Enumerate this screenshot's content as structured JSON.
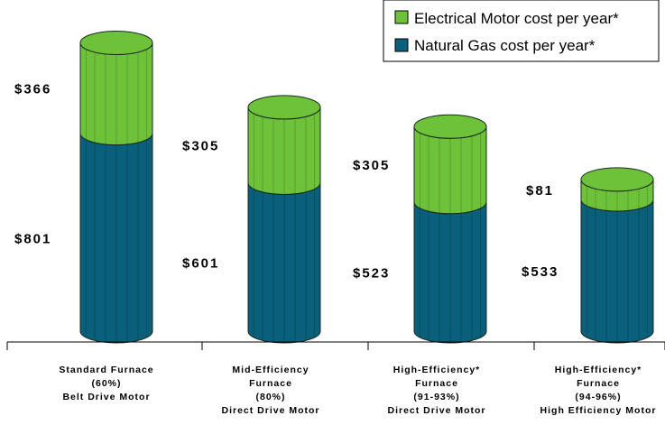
{
  "colors": {
    "electric": "#6EC23A",
    "electric_top": "#5FAE30",
    "gas": "#0A5F7A",
    "gas_top": "#0C6F8B",
    "stroke": "#1a2a20"
  },
  "chart_data": {
    "type": "bar",
    "stacked": true,
    "categories": [
      [
        "Standard Furnace",
        "(60%)",
        "Belt Drive Motor"
      ],
      [
        "Mid-Efficiency",
        "Furnace",
        "(80%)",
        "Direct Drive Motor"
      ],
      [
        "High-Efficiency*",
        "Furnace",
        "(91-93%)",
        "Direct Drive Motor"
      ],
      [
        "High-Efficiency*",
        "Furnace",
        "(94-96%)",
        "High Efficiency Motor"
      ]
    ],
    "series": [
      {
        "name": "Natural Gas cost per year*",
        "values": [
          801,
          601,
          523,
          533
        ],
        "labels": [
          "$801",
          "$601",
          "$523",
          "$533"
        ]
      },
      {
        "name": "Electrical Motor cost per year*",
        "values": [
          366,
          305,
          305,
          81
        ],
        "labels": [
          "$366",
          "$305",
          "$305",
          "$81"
        ]
      }
    ],
    "legend": {
      "position": "top-right",
      "entries": [
        "Electrical Motor cost per year*",
        "Natural Gas cost per year*"
      ]
    },
    "title": "",
    "xlabel": "",
    "ylabel": "",
    "ylim": [
      0,
      1167
    ],
    "grid": false
  }
}
